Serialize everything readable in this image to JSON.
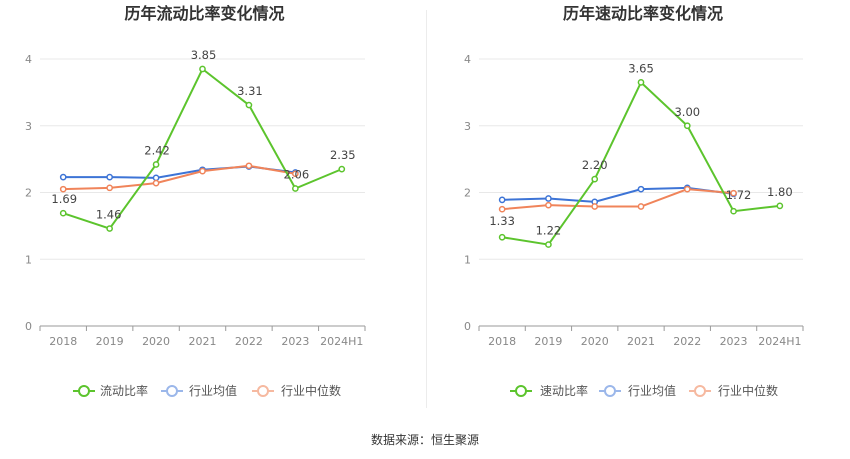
{
  "charts": [
    {
      "type": "line",
      "title": "历年流动比率变化情况",
      "categories": [
        "2018",
        "2019",
        "2020",
        "2021",
        "2022",
        "2023",
        "2024H1"
      ],
      "ylim": [
        0,
        4
      ],
      "yticks": [
        "0",
        "1",
        "2",
        "3",
        "4"
      ],
      "series": [
        {
          "name": "流动比率",
          "color": "#5cc42d",
          "values": [
            1.69,
            1.46,
            2.42,
            3.85,
            3.31,
            2.06,
            2.35
          ],
          "labels": [
            "1.69",
            "1.46",
            "2.42",
            "3.85",
            "3.31",
            "2.06",
            "2.35"
          ]
        },
        {
          "name": "行业均值",
          "color": "#3d74d6",
          "values": [
            2.23,
            2.23,
            2.22,
            2.34,
            2.39,
            2.3
          ]
        },
        {
          "name": "行业中位数",
          "color": "#f0845a",
          "values": [
            2.05,
            2.07,
            2.14,
            2.32,
            2.4,
            2.28
          ]
        }
      ]
    },
    {
      "type": "line",
      "title": "历年速动比率变化情况",
      "categories": [
        "2018",
        "2019",
        "2020",
        "2021",
        "2022",
        "2023",
        "2024H1"
      ],
      "ylim": [
        0,
        4
      ],
      "yticks": [
        "0",
        "1",
        "2",
        "3",
        "4"
      ],
      "series": [
        {
          "name": "速动比率",
          "color": "#5cc42d",
          "values": [
            1.33,
            1.22,
            2.2,
            3.65,
            3.0,
            1.72,
            1.8
          ],
          "labels": [
            "1.33",
            "1.22",
            "2.20",
            "3.65",
            "3.00",
            "1.72",
            "1.80"
          ]
        },
        {
          "name": "行业均值",
          "color": "#3d74d6",
          "values": [
            1.89,
            1.91,
            1.86,
            2.05,
            2.07,
            1.98
          ]
        },
        {
          "name": "行业中位数",
          "color": "#f0845a",
          "values": [
            1.75,
            1.81,
            1.79,
            1.79,
            2.05,
            1.99
          ]
        }
      ]
    }
  ],
  "footer": {
    "source": "数据来源：恒生聚源"
  }
}
